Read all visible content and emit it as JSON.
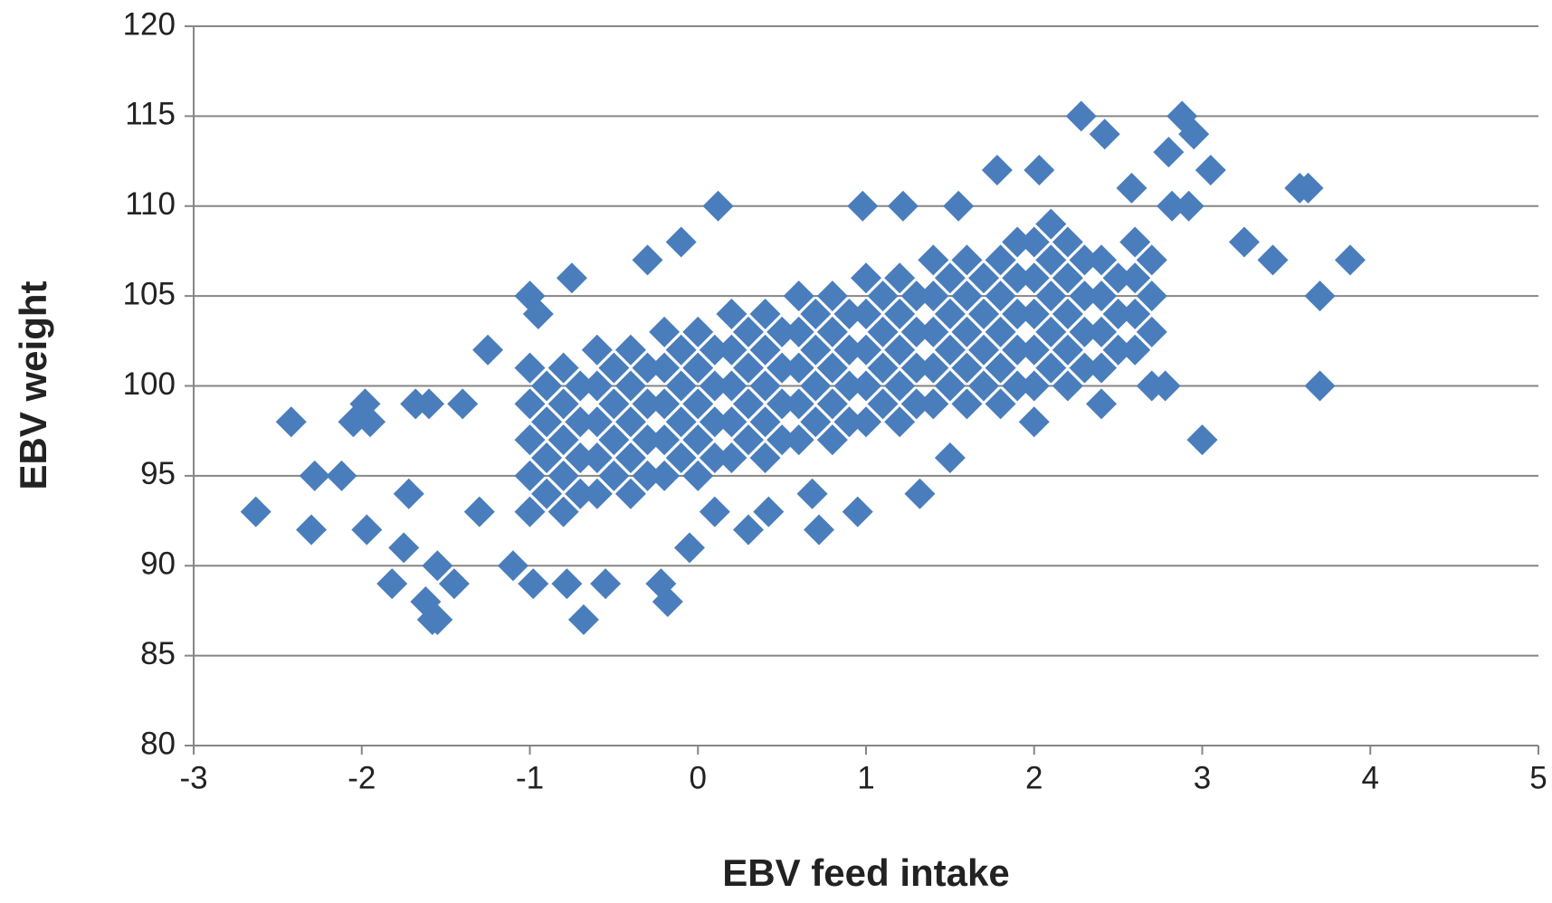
{
  "chart_data": {
    "type": "scatter",
    "x_label": "EBV feed intake",
    "y_label": "EBV weight",
    "color": "#4a7dbb",
    "marker": "diamond",
    "grid": true,
    "xlim": [
      -3,
      5
    ],
    "xticks": [
      -3,
      -2,
      -1,
      0,
      1,
      2,
      3,
      4,
      5
    ],
    "ylim": [
      80,
      120
    ],
    "yticks": [
      80,
      85,
      90,
      95,
      100,
      105,
      110,
      115,
      120
    ],
    "x": [
      -1.0,
      -1.0,
      -1.0,
      -1.0,
      -1.0,
      -0.9,
      -0.9,
      -0.9,
      -0.9,
      -0.8,
      -0.8,
      -0.8,
      -0.8,
      -0.8,
      -0.7,
      -0.7,
      -0.7,
      -0.7,
      -0.6,
      -0.6,
      -0.6,
      -0.6,
      -0.6,
      -0.5,
      -0.5,
      -0.5,
      -0.5,
      -0.4,
      -0.4,
      -0.4,
      -0.4,
      -0.4,
      -0.3,
      -0.3,
      -0.3,
      -0.3,
      -0.2,
      -0.2,
      -0.2,
      -0.2,
      -0.2,
      -0.1,
      -0.1,
      -0.1,
      -0.1,
      0,
      0,
      0,
      0,
      0,
      0.1,
      0.1,
      0.1,
      0.1,
      0.2,
      0.2,
      0.2,
      0.2,
      0.2,
      0.3,
      0.3,
      0.3,
      0.3,
      0.4,
      0.4,
      0.4,
      0.4,
      0.4,
      0.5,
      0.5,
      0.5,
      0.5,
      0.6,
      0.6,
      0.6,
      0.6,
      0.6,
      0.7,
      0.7,
      0.7,
      0.7,
      0.8,
      0.8,
      0.8,
      0.8,
      0.8,
      0.9,
      0.9,
      0.9,
      0.9,
      1.0,
      1.0,
      1.0,
      1.0,
      1.0,
      1.1,
      1.1,
      1.1,
      1.1,
      1.2,
      1.2,
      1.2,
      1.2,
      1.2,
      1.3,
      1.3,
      1.3,
      1.3,
      1.4,
      1.4,
      1.4,
      1.4,
      1.4,
      1.5,
      1.5,
      1.5,
      1.5,
      1.6,
      1.6,
      1.6,
      1.6,
      1.6,
      1.7,
      1.7,
      1.7,
      1.7,
      1.8,
      1.8,
      1.8,
      1.8,
      1.8,
      1.9,
      1.9,
      1.9,
      1.9,
      1.9,
      2.0,
      2.0,
      2.0,
      2.0,
      2.0,
      2.1,
      2.1,
      2.1,
      2.1,
      2.1,
      2.2,
      2.2,
      2.2,
      2.2,
      2.2,
      2.3,
      2.3,
      2.3,
      2.3,
      2.4,
      2.4,
      2.4,
      2.4,
      2.5,
      2.5,
      2.5,
      2.6,
      2.6,
      2.6,
      2.6,
      2.7,
      2.7,
      2.7,
      -2.63,
      -2.42,
      -2.3,
      -2.28,
      -2.12,
      -2.05,
      -1.98,
      -1.97,
      -1.95,
      -1.82,
      -1.75,
      -1.72,
      -1.68,
      -1.6,
      -1.62,
      -1.58,
      -1.55,
      -1.55,
      -1.45,
      -1.4,
      -1.3,
      -1.25,
      -1.1,
      -1.0,
      -0.98,
      -0.95,
      -0.75,
      -0.78,
      -0.68,
      -0.55,
      -0.3,
      -0.22,
      -0.18,
      -0.1,
      -0.05,
      0.12,
      0.1,
      0.3,
      0.42,
      0.68,
      0.72,
      0.95,
      1.32,
      1.5,
      1.78,
      2.03,
      2.0,
      2.28,
      2.42,
      2.4,
      2.58,
      2.7,
      2.78,
      2.8,
      2.88,
      2.95,
      3.05,
      3.0,
      3.25,
      3.42,
      3.58,
      3.63,
      3.7,
      3.7,
      3.88,
      2.82,
      2.92,
      0.98,
      1.22,
      1.55
    ],
    "values": [
      93,
      95,
      97,
      99,
      101,
      94,
      96,
      98,
      100,
      93,
      95,
      97,
      99,
      101,
      94,
      96,
      98,
      100,
      94,
      96,
      98,
      100,
      102,
      95,
      97,
      99,
      101,
      94,
      96,
      98,
      100,
      102,
      95,
      97,
      99,
      101,
      95,
      97,
      99,
      101,
      103,
      96,
      98,
      100,
      102,
      95,
      97,
      99,
      101,
      103,
      96,
      98,
      100,
      102,
      96,
      98,
      100,
      102,
      104,
      97,
      99,
      101,
      103,
      96,
      98,
      100,
      102,
      104,
      97,
      99,
      101,
      103,
      97,
      99,
      101,
      103,
      105,
      98,
      100,
      102,
      104,
      97,
      99,
      101,
      103,
      105,
      98,
      100,
      102,
      104,
      98,
      100,
      102,
      104,
      106,
      99,
      101,
      103,
      105,
      98,
      100,
      102,
      104,
      106,
      99,
      101,
      103,
      105,
      99,
      101,
      103,
      105,
      107,
      100,
      102,
      104,
      106,
      99,
      101,
      103,
      105,
      107,
      100,
      102,
      104,
      106,
      99,
      101,
      103,
      105,
      107,
      100,
      102,
      104,
      106,
      108,
      100,
      102,
      104,
      106,
      108,
      101,
      103,
      105,
      107,
      109,
      100,
      102,
      104,
      106,
      108,
      101,
      103,
      105,
      107,
      101,
      103,
      105,
      107,
      102,
      104,
      106,
      102,
      104,
      106,
      108,
      103,
      105,
      107,
      93,
      98,
      92,
      95,
      95,
      98,
      99,
      92,
      98,
      89,
      91,
      94,
      99,
      99,
      88,
      87,
      87,
      90,
      89,
      99,
      93,
      102,
      90,
      105,
      89,
      104,
      106,
      89,
      87,
      89,
      107,
      89,
      88,
      108,
      91,
      110,
      93,
      92,
      93,
      94,
      92,
      93,
      94,
      96,
      112,
      112,
      98,
      115,
      114,
      99,
      111,
      100,
      100,
      113,
      115,
      114,
      112,
      97,
      108,
      107,
      111,
      111,
      105,
      100,
      107,
      110,
      110,
      110,
      110,
      110
    ]
  }
}
